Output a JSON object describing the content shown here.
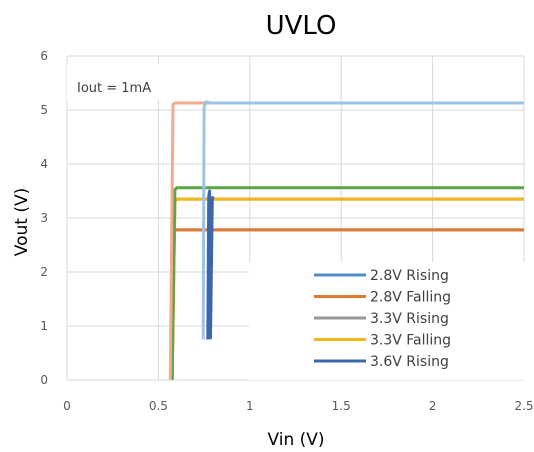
{
  "chart_data": {
    "type": "line",
    "title": "UVLO",
    "xlabel": "Vin (V)",
    "ylabel": "Vout (V)",
    "xlim": [
      0,
      2.5
    ],
    "ylim": [
      0,
      6
    ],
    "xticks": [
      "0",
      "0.5",
      "1",
      "1.5",
      "2",
      "2.5"
    ],
    "yticks": [
      "0",
      "1",
      "2",
      "3",
      "4",
      "5",
      "6"
    ],
    "grid": true,
    "legend_position": "bottom-right",
    "annotation": "Iout = 1mA",
    "series": [
      {
        "name": "2.8V Rising",
        "color": "#4f8fc9",
        "x": [
          0.575,
          0.585,
          0.59,
          2.42,
          2.5
        ],
        "y": [
          0,
          2.75,
          2.78,
          2.78,
          2.78
        ]
      },
      {
        "name": "2.8V Falling",
        "color": "#e0782f",
        "x": [
          0.575,
          0.585,
          0.59,
          2.5
        ],
        "y": [
          0,
          2.75,
          2.78,
          2.78
        ]
      },
      {
        "name": "3.3V Rising",
        "color": "#999999",
        "x": [
          0.575,
          0.59,
          0.6,
          2.5
        ],
        "y": [
          0,
          3.3,
          3.35,
          3.35
        ]
      },
      {
        "name": "3.3V Falling",
        "color": "#f2b619",
        "x": [
          0.575,
          0.59,
          0.6,
          2.5
        ],
        "y": [
          0,
          3.3,
          3.35,
          3.35
        ]
      },
      {
        "name": "3.6V Rising",
        "color": "#3d66ad",
        "x": [
          0.77,
          0.775,
          0.78,
          0.785,
          0.795,
          0.8
        ],
        "y": [
          0.75,
          3.4,
          3.5,
          0.78,
          3.35,
          3.4
        ]
      },
      {
        "name": "",
        "color": "#5aa545",
        "x": [
          0.575,
          0.59,
          0.6,
          2.5
        ],
        "y": [
          0,
          3.52,
          3.56,
          3.56
        ]
      },
      {
        "name": "",
        "color": "#f3ab90",
        "x": [
          0.565,
          0.58,
          0.59,
          2.5
        ],
        "y": [
          0,
          5.1,
          5.13,
          5.13
        ]
      },
      {
        "name": "",
        "color": "#9dc3e6",
        "x": [
          0.745,
          0.75,
          0.76,
          0.79,
          2.5
        ],
        "y": [
          0.75,
          5.05,
          5.15,
          5.13,
          5.13
        ]
      }
    ]
  }
}
